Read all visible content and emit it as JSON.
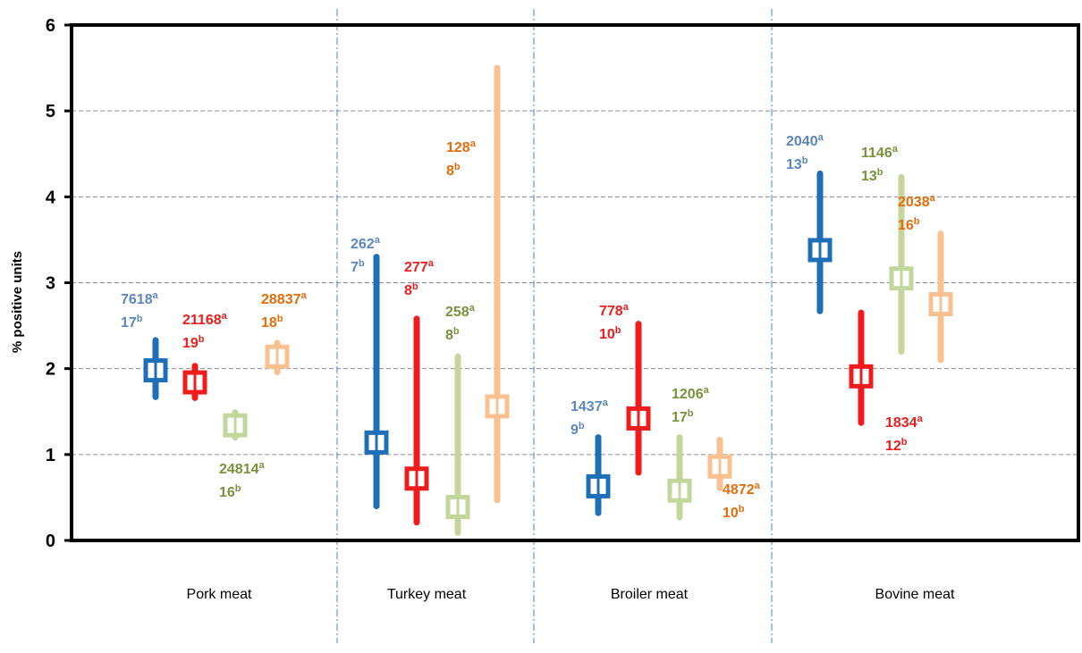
{
  "chart_data": {
    "type": "scatter",
    "title": "",
    "xlabel": "",
    "ylabel": "% positive units",
    "ylim": [
      0,
      6
    ],
    "yticks": [
      "0",
      "1",
      "2",
      "3",
      "4",
      "5",
      "6"
    ],
    "grid": true,
    "legend": "none",
    "categories": [
      "Pork meat",
      "Turkey meat",
      "Broiler meat",
      "Bovine meat"
    ],
    "series": [
      {
        "color": "#1f6fb8",
        "label_color": "#5b87c0",
        "points": [
          {
            "category": "Pork meat",
            "value": 1.98,
            "low": 1.67,
            "high": 2.33,
            "n": "7618",
            "k": "17"
          },
          {
            "category": "Turkey meat",
            "value": 1.14,
            "low": 0.4,
            "high": 3.3,
            "n": "262",
            "k": "7"
          },
          {
            "category": "Broiler meat",
            "value": 0.63,
            "low": 0.32,
            "high": 1.2,
            "n": "1437",
            "k": "9"
          },
          {
            "category": "Bovine meat",
            "value": 3.38,
            "low": 2.67,
            "high": 4.27,
            "n": "2040",
            "k": "13"
          }
        ]
      },
      {
        "color": "#ee1c1c",
        "label_color": "#ee1c1c",
        "points": [
          {
            "category": "Pork meat",
            "value": 1.84,
            "low": 1.66,
            "high": 2.03,
            "n": "21168",
            "k": "19"
          },
          {
            "category": "Turkey meat",
            "value": 0.72,
            "low": 0.21,
            "high": 2.58,
            "n": "277",
            "k": "8"
          },
          {
            "category": "Broiler meat",
            "value": 1.42,
            "low": 0.79,
            "high": 2.52,
            "n": "778",
            "k": "10"
          },
          {
            "category": "Bovine meat",
            "value": 1.91,
            "low": 1.37,
            "high": 2.65,
            "n": "1834",
            "k": "12"
          }
        ]
      },
      {
        "color": "#c3d69b",
        "label_color": "#77933c",
        "points": [
          {
            "category": "Pork meat",
            "value": 1.34,
            "low": 1.2,
            "high": 1.49,
            "n": "24814",
            "k": "16"
          },
          {
            "category": "Turkey meat",
            "value": 0.39,
            "low": 0.09,
            "high": 2.14,
            "n": "258",
            "k": "8"
          },
          {
            "category": "Broiler meat",
            "value": 0.58,
            "low": 0.27,
            "high": 1.2,
            "n": "1206",
            "k": "17"
          },
          {
            "category": "Bovine meat",
            "value": 3.05,
            "low": 2.2,
            "high": 4.23,
            "n": "1146",
            "k": "13"
          }
        ]
      },
      {
        "color": "#fac090",
        "label_color": "#e46c0a",
        "points": [
          {
            "category": "Pork meat",
            "value": 2.14,
            "low": 1.96,
            "high": 2.3,
            "n": "28837",
            "k": "18"
          },
          {
            "category": "Turkey meat",
            "value": 1.56,
            "low": 0.47,
            "high": 5.5,
            "n": "128",
            "k": "8"
          },
          {
            "category": "Broiler meat",
            "value": 0.86,
            "low": 0.61,
            "high": 1.17,
            "n": "4872",
            "k": "10"
          },
          {
            "category": "Bovine meat",
            "value": 2.75,
            "low": 2.1,
            "high": 3.57,
            "n": "2038",
            "k": "16"
          }
        ]
      }
    ]
  }
}
